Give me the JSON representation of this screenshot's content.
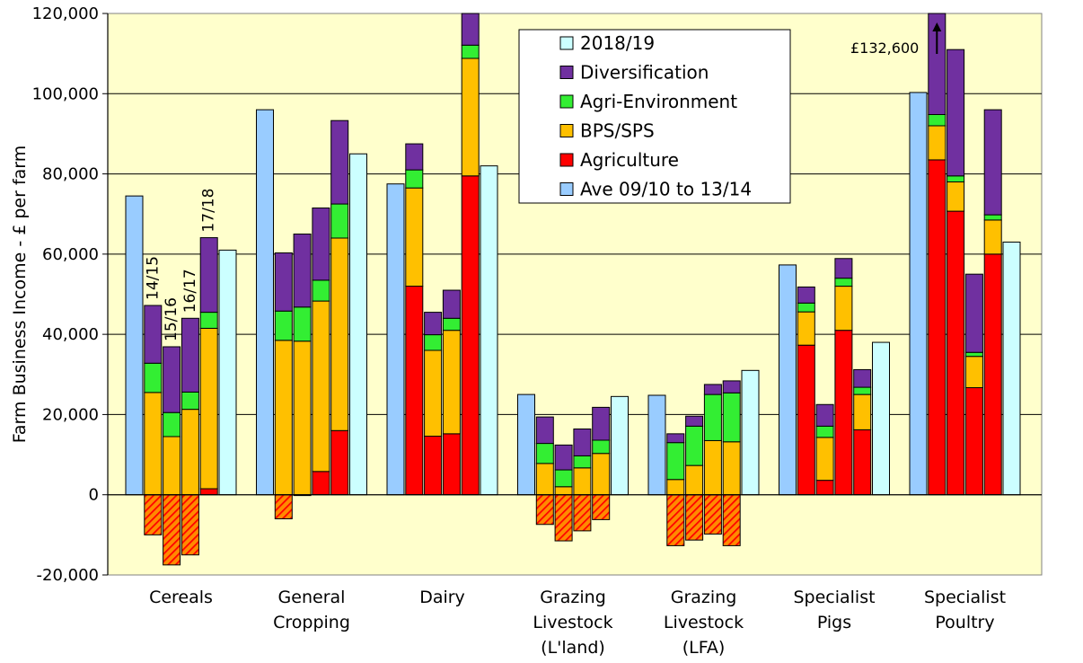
{
  "chart_data": {
    "type": "bar",
    "stacked": true,
    "ylabel": "Farm Business Income - £ per farm",
    "ylim": [
      -20000,
      120000
    ],
    "y_ticks": [
      "-20,000",
      "0",
      "20,000",
      "40,000",
      "60,000",
      "80,000",
      "100,000",
      "120,000"
    ],
    "grid": "horizontal",
    "legend_position": "top-center",
    "legend": [
      {
        "name": "2018/19",
        "color": "#ccffff"
      },
      {
        "name": "Diversification",
        "color": "#7030a0"
      },
      {
        "name": "Agri-Environment",
        "color": "#33ee33"
      },
      {
        "name": "BPS/SPS",
        "color": "#ffc000"
      },
      {
        "name": "Agriculture",
        "color": "#ff0000"
      },
      {
        "name": "Ave 09/10 to 13/14",
        "color": "#99ccff"
      }
    ],
    "year_labels": [
      "14/15",
      "15/16",
      "16/17",
      "17/18"
    ],
    "annotation": "£132,600",
    "groups": [
      {
        "label": [
          "Cereals"
        ],
        "ave": 74500,
        "years": [
          {
            "agriculture": -10000,
            "bps": 25500,
            "agrienv": 7300,
            "divers": 14400
          },
          {
            "agriculture": -17500,
            "bps": 14500,
            "agrienv": 6000,
            "divers": 16400
          },
          {
            "agriculture": -15000,
            "bps": 21300,
            "agrienv": 4300,
            "divers": 18400
          },
          {
            "agriculture": 1500,
            "bps": 40000,
            "agrienv": 4000,
            "divers": 18600
          }
        ],
        "y1819": 61000
      },
      {
        "label": [
          "General",
          "Cropping"
        ],
        "ave": 96000,
        "years": [
          {
            "agriculture": -6000,
            "bps": 38500,
            "agrienv": 7300,
            "divers": 14500
          },
          {
            "agriculture": -200,
            "bps": 38300,
            "agrienv": 8500,
            "divers": 18200
          },
          {
            "agriculture": 5800,
            "bps": 42500,
            "agrienv": 5200,
            "divers": 18000
          },
          {
            "agriculture": 16000,
            "bps": 48000,
            "agrienv": 8500,
            "divers": 20800
          }
        ],
        "y1819": 85000
      },
      {
        "label": [
          "Dairy"
        ],
        "ave": 77500,
        "years": [
          {
            "agriculture": 52000,
            "bps": 24500,
            "agrienv": 4500,
            "divers": 6500
          },
          {
            "agriculture": 14600,
            "bps": 21400,
            "agrienv": 3900,
            "divers": 5600
          },
          {
            "agriculture": 15200,
            "bps": 25800,
            "agrienv": 3000,
            "divers": 7000
          },
          {
            "agriculture": 79500,
            "bps": 29300,
            "agrienv": 3300,
            "divers": 7900
          }
        ],
        "y1819": 82000
      },
      {
        "label": [
          "Grazing",
          "Livestock",
          "(L'land)"
        ],
        "ave": 25000,
        "years": [
          {
            "agriculture": -7400,
            "bps": 7800,
            "agrienv": 5000,
            "divers": 6600
          },
          {
            "agriculture": -11500,
            "bps": 2000,
            "agrienv": 4200,
            "divers": 6200
          },
          {
            "agriculture": -9000,
            "bps": 6700,
            "agrienv": 3000,
            "divers": 6700
          },
          {
            "agriculture": -6200,
            "bps": 10300,
            "agrienv": 3300,
            "divers": 8200
          }
        ],
        "y1819": 24500
      },
      {
        "label": [
          "Grazing",
          "Livestock",
          "(LFA)"
        ],
        "ave": 24800,
        "years": [
          {
            "agriculture": -12700,
            "bps": 3800,
            "agrienv": 9200,
            "divers": 2200
          },
          {
            "agriculture": -11300,
            "bps": 7300,
            "agrienv": 9800,
            "divers": 2500
          },
          {
            "agriculture": -9800,
            "bps": 13500,
            "agrienv": 11500,
            "divers": 2500
          },
          {
            "agriculture": -12700,
            "bps": 13200,
            "agrienv": 12200,
            "divers": 3000
          }
        ],
        "y1819": 31000
      },
      {
        "label": [
          "Specialist",
          "Pigs"
        ],
        "ave": 57300,
        "years": [
          {
            "agriculture": 37300,
            "bps": 8300,
            "agrienv": 2200,
            "divers": 4000
          },
          {
            "agriculture": 3600,
            "bps": 10700,
            "agrienv": 2800,
            "divers": 5400
          },
          {
            "agriculture": 41000,
            "bps": 11000,
            "agrienv": 2000,
            "divers": 4900
          },
          {
            "agriculture": 16200,
            "bps": 8800,
            "agrienv": 1800,
            "divers": 4400
          }
        ],
        "y1819": 38000
      },
      {
        "label": [
          "Specialist",
          "Poultry"
        ],
        "ave": 100300,
        "years": [
          {
            "agriculture": 83500,
            "bps": 8500,
            "agrienv": 2800,
            "divers": 37800
          },
          {
            "agriculture": 70700,
            "bps": 7300,
            "agrienv": 1500,
            "divers": 31500
          },
          {
            "agriculture": 26700,
            "bps": 7800,
            "agrienv": 1000,
            "divers": 19500
          },
          {
            "agriculture": 60000,
            "bps": 8500,
            "agrienv": 1300,
            "divers": 26200
          }
        ],
        "y1819": 63000
      }
    ]
  }
}
